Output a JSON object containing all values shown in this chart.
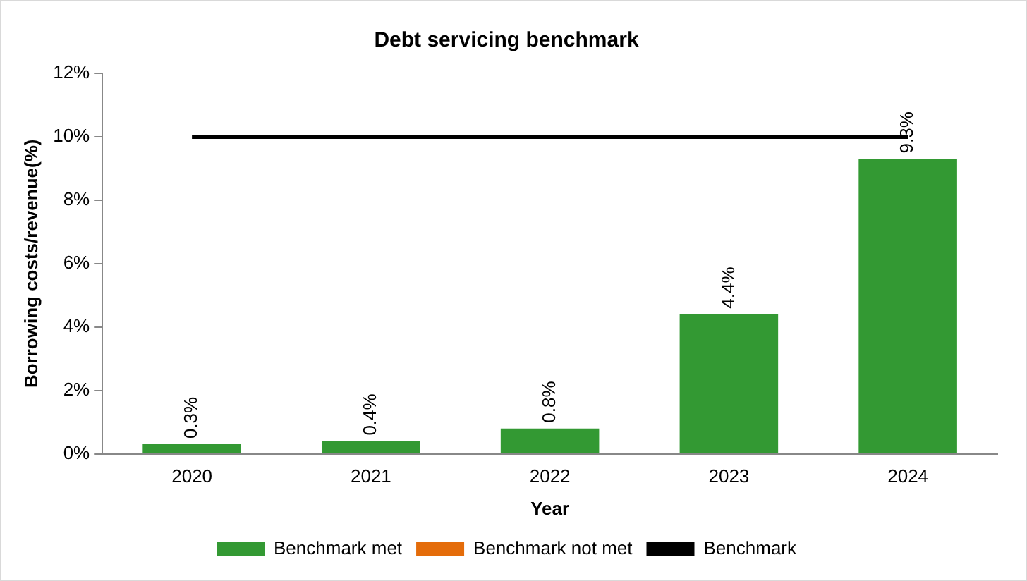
{
  "chart_data": {
    "type": "bar",
    "title": "Debt servicing benchmark",
    "xlabel": "Year",
    "ylabel": "Borrowing costs/revenue(%)",
    "categories": [
      "2020",
      "2021",
      "2022",
      "2023",
      "2024"
    ],
    "series": [
      {
        "name": "Benchmark met",
        "color": "#339933",
        "values": [
          0.3,
          0.4,
          0.8,
          4.4,
          9.3
        ],
        "value_labels": [
          "0.3%",
          "0.4%",
          "0.8%",
          "4.4%",
          "9.3%"
        ]
      },
      {
        "name": "Benchmark not met",
        "color": "#e46c0a",
        "values": [
          null,
          null,
          null,
          null,
          null
        ]
      },
      {
        "name": "Benchmark",
        "type": "line",
        "color": "#000000",
        "values": [
          10,
          10,
          10,
          10,
          10
        ],
        "marker": "none",
        "line_style": "solid"
      }
    ],
    "ylim": [
      0,
      12
    ],
    "yticks": [
      {
        "value": 0,
        "label": "0%"
      },
      {
        "value": 2,
        "label": "2%"
      },
      {
        "value": 4,
        "label": "4%"
      },
      {
        "value": 6,
        "label": "6%"
      },
      {
        "value": 8,
        "label": "8%"
      },
      {
        "value": 10,
        "label": "10%"
      },
      {
        "value": 12,
        "label": "12%"
      }
    ],
    "grid": false,
    "legend": "bottom"
  }
}
